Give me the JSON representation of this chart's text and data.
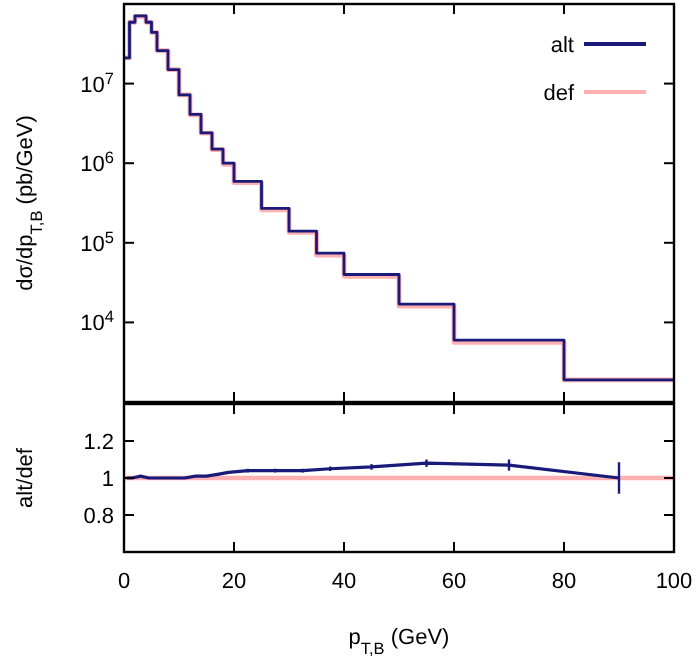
{
  "chart_data": [
    {
      "type": "step",
      "ylabel": "dσ/dp$_{T,B}$ (pb/GeV)",
      "x": [
        0,
        1,
        2,
        4,
        5,
        6,
        8,
        10,
        12,
        14,
        16,
        18,
        20,
        25,
        30,
        35,
        40,
        50,
        60,
        80,
        100
      ],
      "series": [
        {
          "name": "alt",
          "color": "#1a1a7a",
          "values": [
            21000000,
            59000000,
            71000000,
            59000000,
            44000000,
            26000000,
            15000000,
            7200000,
            4100000,
            2400000,
            1500000,
            1000000,
            590000,
            270000,
            140000,
            74000,
            40000,
            17000,
            6000,
            1900,
            1900
          ]
        },
        {
          "name": "def",
          "color": "#ffb0b0",
          "values": [
            21000000,
            59000000,
            70000000,
            59000000,
            44000000,
            26000000,
            15000000,
            7200000,
            4050000,
            2380000,
            1480000,
            970000,
            570000,
            260000,
            135000,
            70000,
            38000,
            16000,
            5600,
            1900,
            1900
          ]
        }
      ],
      "log": "y",
      "xlim": [
        0,
        100
      ],
      "xticks": [
        {
          "value": 0,
          "label": null
        },
        {
          "value": 20,
          "label": null
        },
        {
          "value": 40,
          "label": null
        },
        {
          "value": 60,
          "label": null
        },
        {
          "value": 80,
          "label": null
        },
        {
          "value": 100,
          "label": null
        }
      ],
      "ylim": [
        1000,
        100000000
      ],
      "yticks": [
        {
          "value": 10000,
          "label": "10$^{4}$"
        },
        {
          "value": 100000,
          "label": "10$^{5}$"
        },
        {
          "value": 1000000,
          "label": "10$^{6}$"
        },
        {
          "value": 10000000,
          "label": "10$^{7}$"
        }
      ],
      "tick_labels": "y",
      "legend": "top right",
      "grid": false
    },
    {
      "type": "line",
      "xlabel": "p$_{T,B}$ (GeV)",
      "ylabel": "alt/def",
      "series": [
        {
          "color": "#ffb0b0",
          "x": [
            0,
            100
          ],
          "values": [
            1,
            1
          ]
        },
        {
          "color": "#1a1a7a",
          "x": [
            0.5,
            1.5,
            3,
            4.5,
            5.5,
            7,
            9,
            11,
            13,
            15,
            17,
            19,
            22.5,
            27.5,
            32.5,
            37.5,
            45,
            55,
            70,
            90
          ],
          "values": [
            1,
            1,
            1.01,
            1,
            1,
            1,
            1,
            1,
            1.01,
            1.01,
            1.02,
            1.03,
            1.04,
            1.04,
            1.04,
            1.05,
            1.06,
            1.08,
            1.07,
            1
          ],
          "errors": [
            0.005,
            0.005,
            0.005,
            0.005,
            0.005,
            0.005,
            0.005,
            0.005,
            0.005,
            0.005,
            0.005,
            0.005,
            0.01,
            0.01,
            0.01,
            0.012,
            0.015,
            0.02,
            0.03,
            0.085
          ]
        }
      ],
      "xlim": [
        0,
        100
      ],
      "xticks": [
        0,
        20,
        40,
        60,
        80,
        100
      ],
      "ylim": [
        0.6,
        1.4
      ],
      "yticks": [
        0.8,
        1,
        1.2
      ],
      "marker": "none",
      "line_style": "solid",
      "grid": false
    }
  ]
}
